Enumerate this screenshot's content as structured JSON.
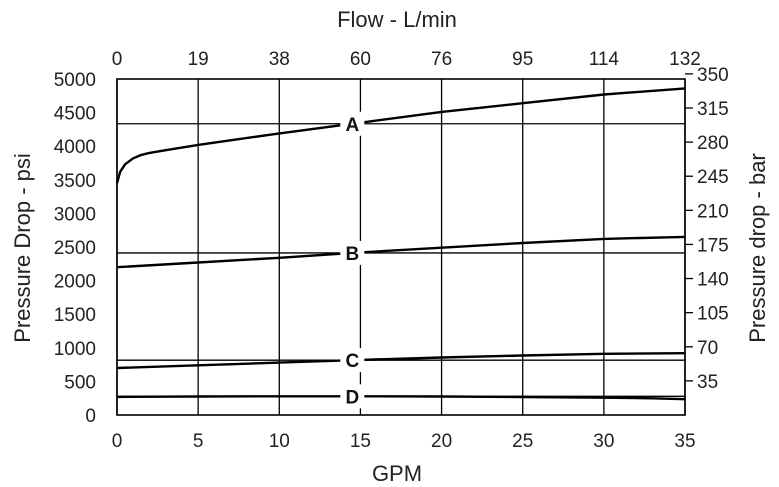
{
  "chart_data": {
    "type": "line",
    "title": "",
    "top_axis": {
      "label": "Flow - L/min",
      "ticks": [
        "0",
        "19",
        "38",
        "60",
        "76",
        "95",
        "114",
        "132"
      ]
    },
    "bottom_axis": {
      "label": "GPM",
      "ticks": [
        "0",
        "5",
        "10",
        "15",
        "20",
        "25",
        "30",
        "35"
      ],
      "range": [
        0,
        35
      ]
    },
    "left_axis": {
      "label": "Pressure Drop - psi",
      "ticks": [
        "0",
        "500",
        "1000",
        "1500",
        "2000",
        "2500",
        "3000",
        "3500",
        "4000",
        "4500",
        "5000"
      ],
      "range": [
        0,
        5000
      ]
    },
    "right_axis": {
      "label": "Pressure drop - bar",
      "ticks": [
        "35",
        "70",
        "105",
        "140",
        "175",
        "210",
        "245",
        "280",
        "315",
        "350"
      ]
    },
    "grid": "vertical lines at each GPM tick",
    "series": [
      {
        "name": "A",
        "label_at_x": 14.5,
        "x": [
          0,
          0.2,
          0.5,
          1,
          1.5,
          2,
          3,
          5,
          10,
          15,
          20,
          25,
          30,
          35
        ],
        "y": [
          3450,
          3620,
          3730,
          3820,
          3870,
          3900,
          3940,
          4020,
          4190,
          4350,
          4510,
          4640,
          4770,
          4860
        ]
      },
      {
        "name": "B",
        "label_at_x": 14.5,
        "x": [
          0,
          5,
          10,
          15,
          20,
          25,
          30,
          35
        ],
        "y": [
          2200,
          2270,
          2340,
          2420,
          2490,
          2560,
          2620,
          2650
        ]
      },
      {
        "name": "C",
        "label_at_x": 14.5,
        "x": [
          0,
          5,
          10,
          15,
          20,
          25,
          30,
          35
        ],
        "y": [
          700,
          740,
          780,
          820,
          855,
          885,
          910,
          920
        ]
      },
      {
        "name": "D",
        "label_at_x": 14.5,
        "x": [
          0,
          5,
          10,
          15,
          20,
          25,
          30,
          33,
          35
        ],
        "y": [
          270,
          275,
          278,
          278,
          275,
          268,
          258,
          248,
          235
        ]
      }
    ]
  }
}
